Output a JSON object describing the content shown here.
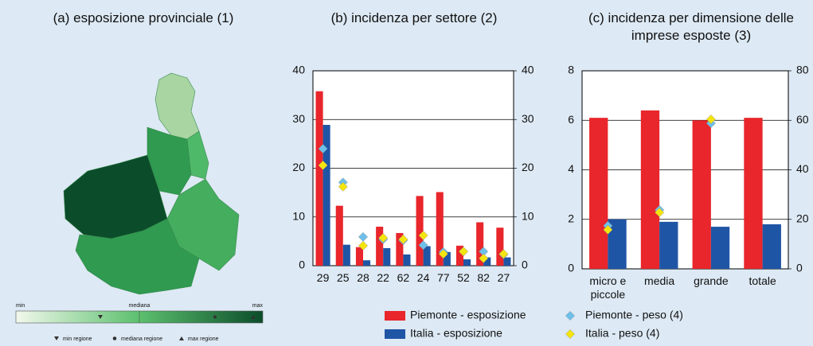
{
  "chart_data": [
    {
      "type": "map",
      "title": "(a) esposizione provinciale (1)",
      "scale_labels": [
        "min",
        "mediana",
        "max"
      ],
      "legend": [
        "min regione",
        "mediana regione",
        "max regione"
      ]
    },
    {
      "type": "bar",
      "title": "(b) incidenza per settore (2)",
      "categories": [
        "29",
        "25",
        "28",
        "22",
        "62",
        "24",
        "77",
        "52",
        "82",
        "27"
      ],
      "series": [
        {
          "name": "Piemonte - esposizione",
          "color": "#e8262b",
          "values": [
            35.8,
            12.3,
            3.8,
            8.0,
            6.7,
            14.3,
            15.1,
            4.1,
            8.9,
            7.8
          ]
        },
        {
          "name": "Italia - esposizione",
          "color": "#1f55a5",
          "values": [
            28.9,
            4.3,
            1.1,
            3.6,
            2.3,
            4.0,
            2.8,
            1.3,
            1.7,
            1.7
          ]
        },
        {
          "name": "Piemonte - peso (4)",
          "color": "#6ec0ea",
          "marker": "diamond",
          "axis": "y2",
          "values": [
            24.0,
            17.1,
            5.9,
            5.4,
            5.2,
            4.2,
            2.8,
            2.9,
            2.9,
            2.3
          ]
        },
        {
          "name": "Italia - peso (4)",
          "color": "#f5e50f",
          "marker": "diamond",
          "axis": "y2",
          "values": [
            20.6,
            16.2,
            4.1,
            5.7,
            5.4,
            6.2,
            2.4,
            2.9,
            1.5,
            2.4
          ]
        }
      ],
      "ylim": [
        0,
        40
      ],
      "yticks": [
        0,
        10,
        20,
        30,
        40
      ],
      "y2lim": [
        0,
        40
      ],
      "y2ticks": [
        0,
        10,
        20,
        30,
        40
      ],
      "grid": true
    },
    {
      "type": "bar",
      "title": "(c) incidenza per dimensione delle imprese esposte (3)",
      "categories": [
        "micro e piccole",
        "media",
        "grande",
        "totale"
      ],
      "series": [
        {
          "color": "#e8262b",
          "values": [
            6.1,
            6.4,
            6.0,
            6.1
          ]
        },
        {
          "color": "#1f55a5",
          "values": [
            2.0,
            1.9,
            1.7,
            1.8
          ]
        },
        {
          "color": "#6ec0ea",
          "marker": "diamond",
          "axis": "y2",
          "values": [
            17.4,
            23.8,
            58.8,
            null
          ]
        },
        {
          "color": "#f5e50f",
          "marker": "diamond",
          "axis": "y2",
          "values": [
            15.8,
            22.8,
            60.4,
            null
          ]
        }
      ],
      "ylim": [
        0,
        8
      ],
      "yticks": [
        0,
        2,
        4,
        6,
        8
      ],
      "y2lim": [
        0,
        80
      ],
      "y2ticks": [
        0,
        20,
        40,
        60,
        80
      ],
      "grid": true
    }
  ]
}
